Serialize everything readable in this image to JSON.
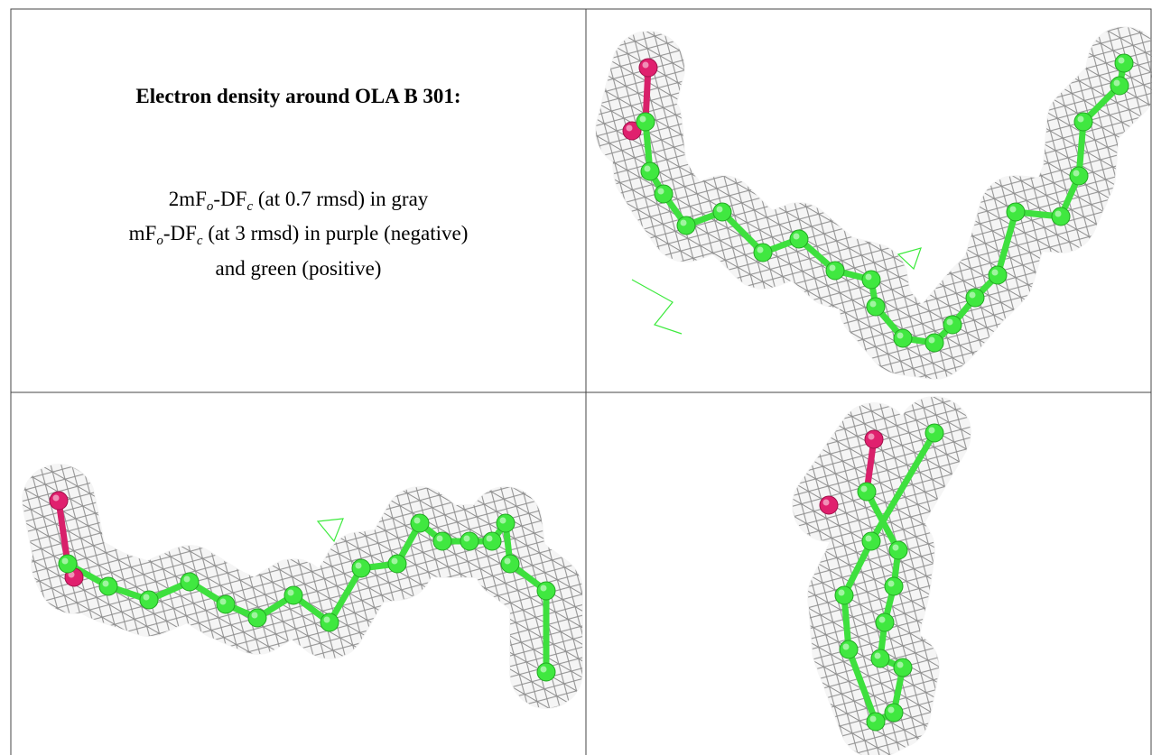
{
  "header": {
    "title": "Electron density around OLA B 301:"
  },
  "legend": [
    [
      "2mF",
      "o",
      "-DF",
      "c",
      " (at 0.7 rmsd) in gray"
    ],
    [
      "mF",
      "o",
      "-DF",
      "c",
      " (at 3 rmsd) in purple (negative)"
    ],
    [
      "and green (positive)"
    ]
  ]
}
